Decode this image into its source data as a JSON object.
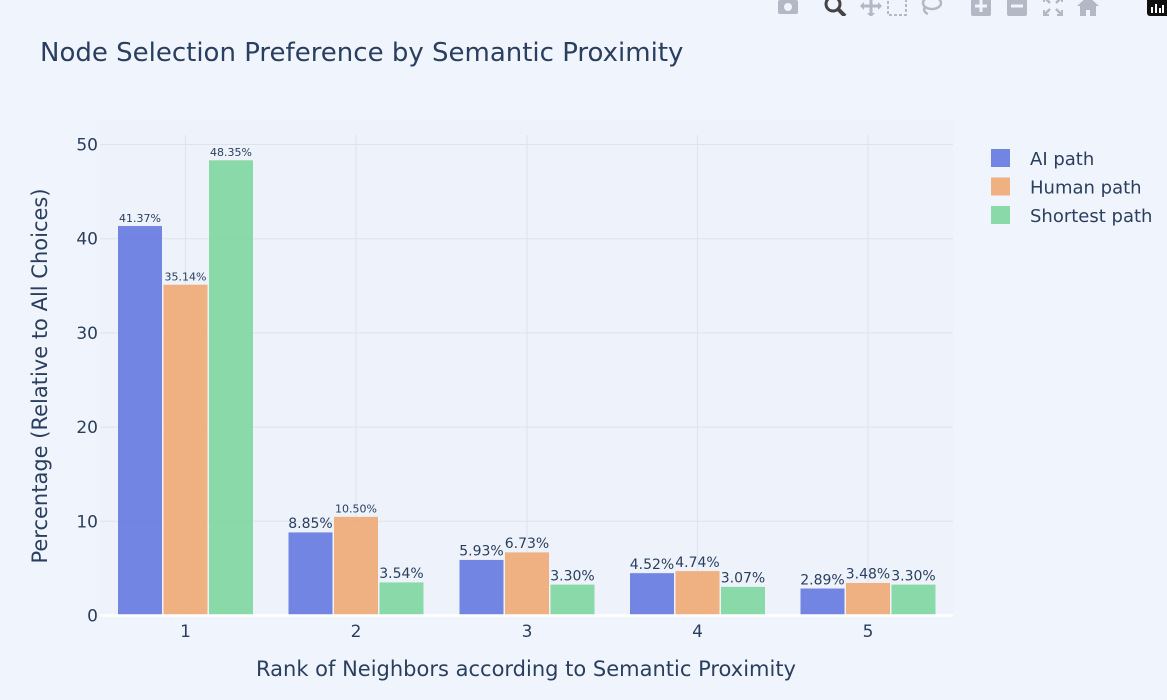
{
  "modebar": {
    "buttons": [
      {
        "name": "camera-icon"
      },
      {
        "name": "zoom-icon"
      },
      {
        "name": "pan-icon"
      },
      {
        "name": "box-select-icon"
      },
      {
        "name": "lasso-icon"
      },
      {
        "name": "zoom-in-icon"
      },
      {
        "name": "zoom-out-icon"
      },
      {
        "name": "autoscale-icon"
      },
      {
        "name": "home-icon"
      }
    ],
    "color": "#b3b9c4",
    "active_color": "#444444"
  },
  "chart_data": {
    "type": "bar",
    "title": "Node Selection Preference by Semantic Proximity",
    "xlabel": "Rank of Neighbors according to Semantic Proximity",
    "ylabel": "Percentage (Relative to All Choices)",
    "categories": [
      "1",
      "2",
      "3",
      "4",
      "5"
    ],
    "ylim": [
      0,
      52
    ],
    "yticks": [
      0,
      10,
      20,
      30,
      40,
      50
    ],
    "grid": true,
    "legend_position": "top-right",
    "series": [
      {
        "name": "AI path",
        "color": "#6479e0",
        "values": [
          41.37,
          8.85,
          5.93,
          4.52,
          2.89
        ],
        "labels": [
          "41.37%",
          "8.85%",
          "5.93%",
          "4.52%",
          "2.89%"
        ]
      },
      {
        "name": "Human path",
        "color": "#f0aa74",
        "values": [
          35.14,
          10.5,
          6.73,
          4.74,
          3.48
        ],
        "labels": [
          "35.14%",
          "10.50%",
          "6.73%",
          "4.74%",
          "3.48%"
        ]
      },
      {
        "name": "Shortest path",
        "color": "#7dd6a0",
        "values": [
          48.35,
          3.54,
          3.3,
          3.07,
          3.3
        ],
        "labels": [
          "48.35%",
          "3.54%",
          "3.30%",
          "3.07%",
          "3.30%"
        ]
      }
    ]
  }
}
